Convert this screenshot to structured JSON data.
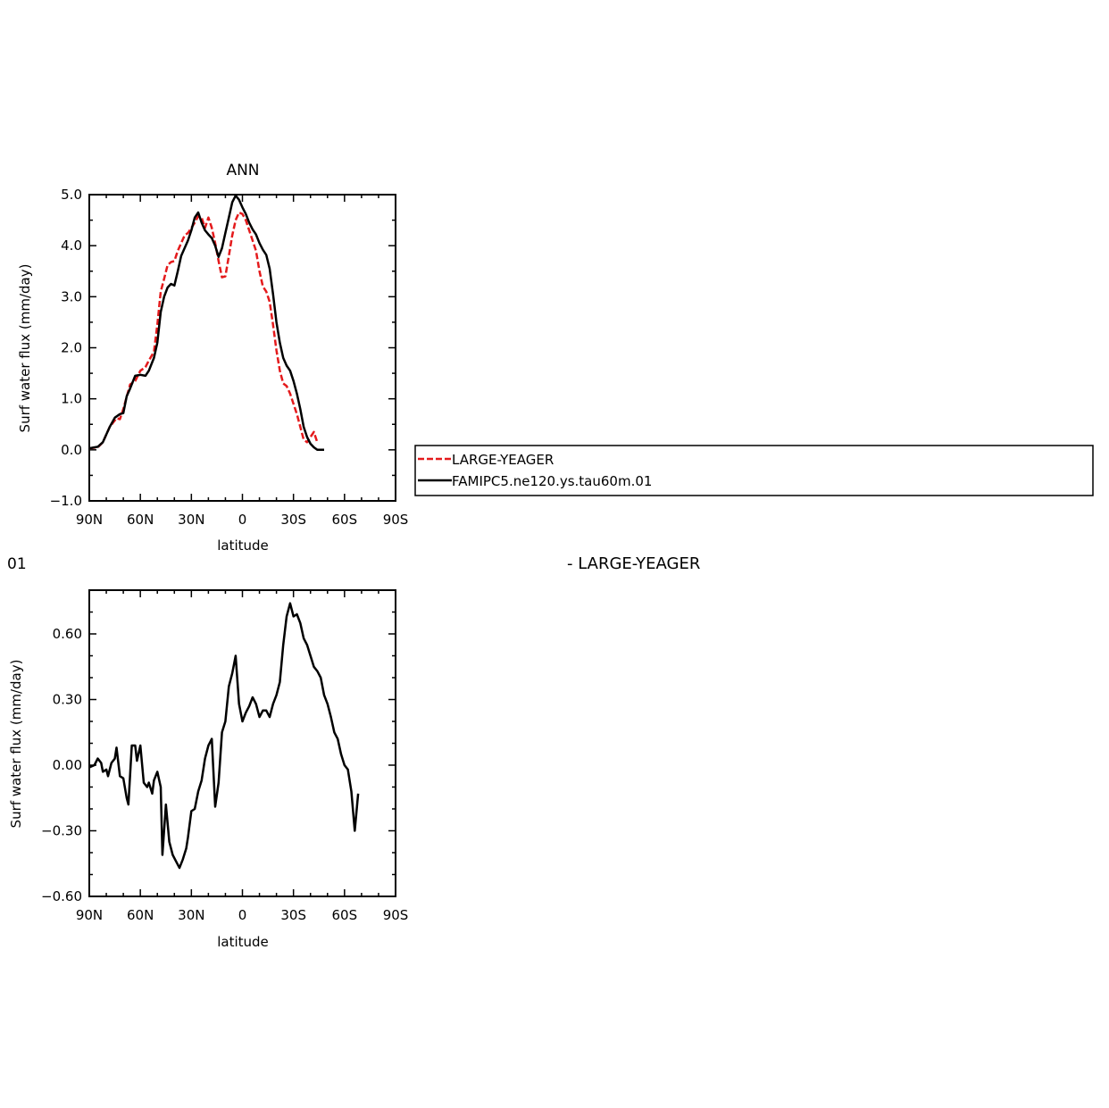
{
  "charts": [
    {
      "title": "ANN",
      "xlabel": "latitude",
      "ylabel": "Surf  water  flux  (mm/day)",
      "xticks": [
        "90N",
        "60N",
        "30N",
        "0",
        "30S",
        "60S",
        "90S"
      ],
      "yticks": [
        "-1.0",
        "0.0",
        "1.0",
        "2.0",
        "3.0",
        "4.0",
        "5.0"
      ],
      "legend": [
        "LARGE-YEAGER",
        "FAMIPC5.ne120.ys.tau60m.01"
      ]
    },
    {
      "left_label": "01",
      "right_label": "- LARGE-YEAGER",
      "xlabel": "latitude",
      "ylabel": "Surf  water  flux  (mm/day)",
      "xticks": [
        "90N",
        "60N",
        "30N",
        "0",
        "30S",
        "60S",
        "90S"
      ],
      "yticks": [
        "-0.60",
        "-0.30",
        "0.00",
        "0.30",
        "0.60"
      ]
    }
  ],
  "colors": {
    "large_yeager": "#e41a1c",
    "model": "#000000"
  },
  "chart_data": [
    {
      "type": "line",
      "title": "ANN",
      "xlabel": "latitude",
      "ylabel": "Surf  water  flux  (mm/day)",
      "xlim": [
        -90,
        90
      ],
      "ylim": [
        -1.0,
        5.0
      ],
      "legend_position": "right",
      "series": [
        {
          "name": "LARGE-YEAGER",
          "style": "dashed",
          "color": "#e41a1c",
          "points": [
            [
              -90,
              0.03
            ],
            [
              -85,
              0.05
            ],
            [
              -82,
              0.15
            ],
            [
              -78,
              0.45
            ],
            [
              -74,
              0.62
            ],
            [
              -72,
              0.6
            ],
            [
              -70,
              0.8
            ],
            [
              -66,
              1.28
            ],
            [
              -63,
              1.35
            ],
            [
              -60,
              1.55
            ],
            [
              -57,
              1.62
            ],
            [
              -55,
              1.75
            ],
            [
              -52,
              1.92
            ],
            [
              -50,
              2.45
            ],
            [
              -48,
              3.1
            ],
            [
              -46,
              3.35
            ],
            [
              -44,
              3.62
            ],
            [
              -42,
              3.68
            ],
            [
              -40,
              3.7
            ],
            [
              -38,
              3.9
            ],
            [
              -36,
              4.05
            ],
            [
              -34,
              4.2
            ],
            [
              -32,
              4.25
            ],
            [
              -30,
              4.35
            ],
            [
              -28,
              4.45
            ],
            [
              -26,
              4.58
            ],
            [
              -24,
              4.55
            ],
            [
              -22,
              4.35
            ],
            [
              -20,
              4.55
            ],
            [
              -18,
              4.35
            ],
            [
              -16,
              4.05
            ],
            [
              -14,
              3.7
            ],
            [
              -12,
              3.38
            ],
            [
              -10,
              3.4
            ],
            [
              -8,
              3.8
            ],
            [
              -6,
              4.2
            ],
            [
              -4,
              4.5
            ],
            [
              -2,
              4.65
            ],
            [
              0,
              4.62
            ],
            [
              2,
              4.5
            ],
            [
              4,
              4.3
            ],
            [
              6,
              4.1
            ],
            [
              8,
              3.9
            ],
            [
              10,
              3.5
            ],
            [
              12,
              3.2
            ],
            [
              14,
              3.1
            ],
            [
              16,
              2.9
            ],
            [
              18,
              2.45
            ],
            [
              20,
              1.95
            ],
            [
              22,
              1.55
            ],
            [
              24,
              1.3
            ],
            [
              26,
              1.25
            ],
            [
              28,
              1.1
            ],
            [
              30,
              0.9
            ],
            [
              32,
              0.7
            ],
            [
              34,
              0.45
            ],
            [
              36,
              0.2
            ],
            [
              38,
              0.15
            ],
            [
              40,
              0.25
            ],
            [
              42,
              0.35
            ],
            [
              44,
              0.15
            ]
          ]
        },
        {
          "name": "FAMIPC5.ne120.ys.tau60m.01",
          "style": "solid",
          "color": "#000000",
          "points": [
            [
              -90,
              0.03
            ],
            [
              -85,
              0.06
            ],
            [
              -82,
              0.15
            ],
            [
              -78,
              0.45
            ],
            [
              -75,
              0.63
            ],
            [
              -72,
              0.7
            ],
            [
              -70,
              0.72
            ],
            [
              -68,
              1.05
            ],
            [
              -66,
              1.2
            ],
            [
              -63,
              1.45
            ],
            [
              -60,
              1.47
            ],
            [
              -57,
              1.45
            ],
            [
              -55,
              1.55
            ],
            [
              -52,
              1.8
            ],
            [
              -50,
              2.1
            ],
            [
              -48,
              2.7
            ],
            [
              -46,
              3.0
            ],
            [
              -44,
              3.18
            ],
            [
              -42,
              3.25
            ],
            [
              -40,
              3.22
            ],
            [
              -38,
              3.5
            ],
            [
              -36,
              3.8
            ],
            [
              -34,
              3.95
            ],
            [
              -32,
              4.1
            ],
            [
              -30,
              4.3
            ],
            [
              -28,
              4.55
            ],
            [
              -26,
              4.65
            ],
            [
              -24,
              4.45
            ],
            [
              -22,
              4.3
            ],
            [
              -20,
              4.22
            ],
            [
              -18,
              4.15
            ],
            [
              -16,
              4.0
            ],
            [
              -14,
              3.78
            ],
            [
              -12,
              3.95
            ],
            [
              -10,
              4.25
            ],
            [
              -8,
              4.55
            ],
            [
              -6,
              4.85
            ],
            [
              -4,
              4.98
            ],
            [
              -2,
              4.9
            ],
            [
              0,
              4.75
            ],
            [
              2,
              4.62
            ],
            [
              4,
              4.45
            ],
            [
              6,
              4.32
            ],
            [
              8,
              4.22
            ],
            [
              10,
              4.05
            ],
            [
              12,
              3.92
            ],
            [
              14,
              3.82
            ],
            [
              16,
              3.55
            ],
            [
              18,
              3.05
            ],
            [
              20,
              2.5
            ],
            [
              22,
              2.1
            ],
            [
              24,
              1.8
            ],
            [
              26,
              1.65
            ],
            [
              28,
              1.55
            ],
            [
              30,
              1.35
            ],
            [
              32,
              1.1
            ],
            [
              34,
              0.8
            ],
            [
              36,
              0.45
            ],
            [
              38,
              0.25
            ],
            [
              40,
              0.12
            ],
            [
              42,
              0.05
            ],
            [
              44,
              0.0
            ],
            [
              48,
              0.0
            ]
          ]
        }
      ]
    },
    {
      "type": "line",
      "title": "",
      "xlabel": "latitude",
      "ylabel": "Surf  water  flux  (mm/day)",
      "xlim": [
        -90,
        90
      ],
      "ylim": [
        -0.6,
        0.8
      ],
      "series": [
        {
          "style": "solid",
          "color": "#000000",
          "points": [
            [
              -90,
              -0.01
            ],
            [
              -87,
              0.0
            ],
            [
              -85,
              0.03
            ],
            [
              -83,
              0.01
            ],
            [
              -82,
              -0.03
            ],
            [
              -80,
              -0.02
            ],
            [
              -79,
              -0.05
            ],
            [
              -77,
              0.01
            ],
            [
              -75,
              0.03
            ],
            [
              -74,
              0.08
            ],
            [
              -72,
              -0.05
            ],
            [
              -70,
              -0.06
            ],
            [
              -68,
              -0.15
            ],
            [
              -67,
              -0.18
            ],
            [
              -65,
              0.09
            ],
            [
              -63,
              0.09
            ],
            [
              -62,
              0.02
            ],
            [
              -60,
              0.09
            ],
            [
              -58,
              -0.08
            ],
            [
              -56,
              -0.1
            ],
            [
              -55,
              -0.08
            ],
            [
              -53,
              -0.13
            ],
            [
              -52,
              -0.07
            ],
            [
              -50,
              -0.03
            ],
            [
              -48,
              -0.1
            ],
            [
              -47,
              -0.41
            ],
            [
              -45,
              -0.18
            ],
            [
              -43,
              -0.35
            ],
            [
              -41,
              -0.41
            ],
            [
              -39,
              -0.44
            ],
            [
              -37,
              -0.47
            ],
            [
              -35,
              -0.43
            ],
            [
              -33,
              -0.38
            ],
            [
              -32,
              -0.33
            ],
            [
              -30,
              -0.21
            ],
            [
              -28,
              -0.2
            ],
            [
              -26,
              -0.12
            ],
            [
              -24,
              -0.07
            ],
            [
              -22,
              0.03
            ],
            [
              -20,
              0.09
            ],
            [
              -18,
              0.12
            ],
            [
              -16,
              -0.19
            ],
            [
              -14,
              -0.08
            ],
            [
              -12,
              0.15
            ],
            [
              -10,
              0.2
            ],
            [
              -8,
              0.36
            ],
            [
              -6,
              0.42
            ],
            [
              -4,
              0.5
            ],
            [
              -2,
              0.28
            ],
            [
              0,
              0.2
            ],
            [
              2,
              0.24
            ],
            [
              4,
              0.27
            ],
            [
              6,
              0.31
            ],
            [
              8,
              0.28
            ],
            [
              10,
              0.22
            ],
            [
              12,
              0.25
            ],
            [
              14,
              0.25
            ],
            [
              16,
              0.22
            ],
            [
              18,
              0.28
            ],
            [
              20,
              0.32
            ],
            [
              22,
              0.38
            ],
            [
              24,
              0.55
            ],
            [
              26,
              0.68
            ],
            [
              28,
              0.74
            ],
            [
              30,
              0.68
            ],
            [
              32,
              0.69
            ],
            [
              34,
              0.65
            ],
            [
              36,
              0.58
            ],
            [
              38,
              0.55
            ],
            [
              40,
              0.5
            ],
            [
              42,
              0.45
            ],
            [
              44,
              0.43
            ],
            [
              46,
              0.4
            ],
            [
              48,
              0.32
            ],
            [
              50,
              0.28
            ],
            [
              52,
              0.22
            ],
            [
              54,
              0.15
            ],
            [
              56,
              0.12
            ],
            [
              58,
              0.05
            ],
            [
              60,
              0.0
            ],
            [
              62,
              -0.02
            ],
            [
              64,
              -0.12
            ],
            [
              66,
              -0.3
            ],
            [
              68,
              -0.13
            ]
          ]
        }
      ]
    }
  ]
}
